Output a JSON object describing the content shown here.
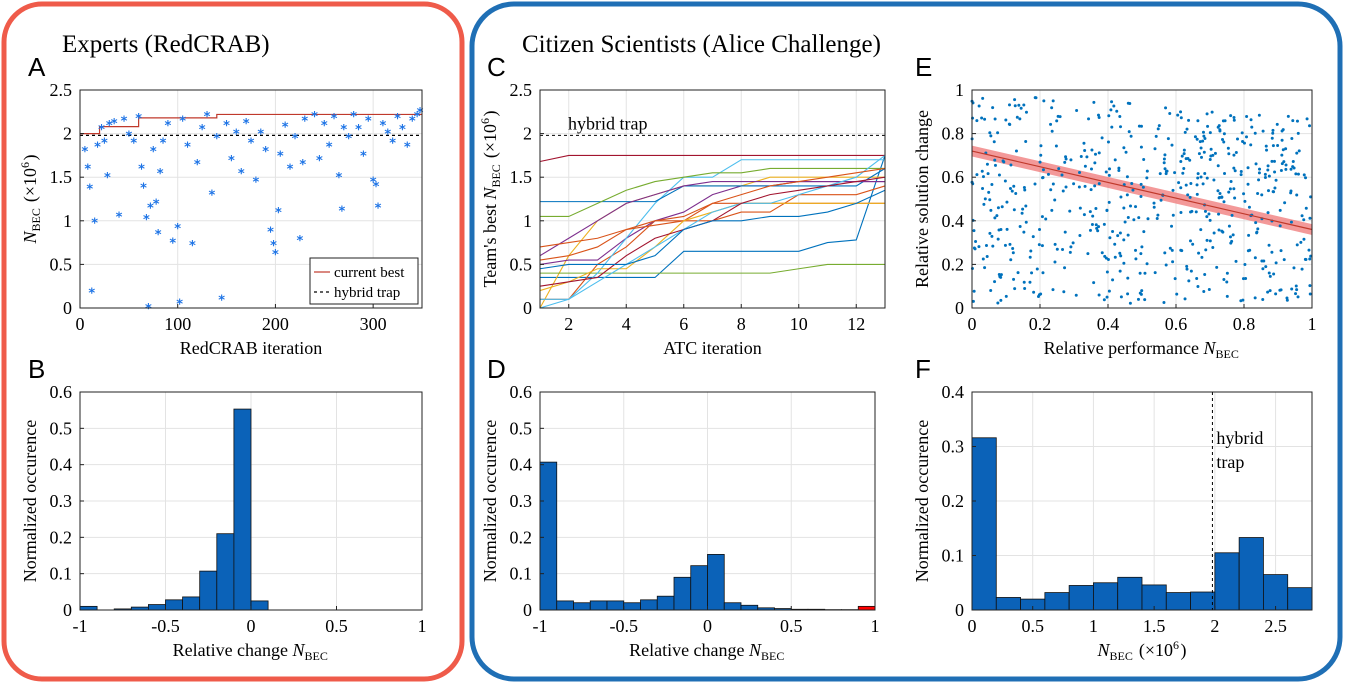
{
  "groups": {
    "experts": {
      "title": "Experts (RedCRAB)",
      "color": "#EF5B4A"
    },
    "citizens": {
      "title": "Citizen Scientists (Alice Challenge)",
      "color": "#1F6FB5"
    }
  },
  "chart_data": [
    {
      "panel": "A",
      "type": "scatter",
      "xlabel": "RedCRAB iteration",
      "ylabel": "N_BEC (×10^6)",
      "xlim": [
        0,
        350
      ],
      "ylim": [
        0,
        2.5
      ],
      "xticks": [
        0,
        100,
        200,
        300
      ],
      "yticks": [
        0,
        0.5,
        1,
        1.5,
        2,
        2.5
      ],
      "grid": true,
      "legend_position": "bottom-right",
      "lines": [
        {
          "name": "current best",
          "style": "solid",
          "color": "#C0392B",
          "x": [
            0,
            20,
            20,
            60,
            60,
            140,
            140,
            350
          ],
          "y": [
            2.0,
            2.0,
            2.08,
            2.08,
            2.18,
            2.18,
            2.22,
            2.22
          ]
        },
        {
          "name": "hybrid trap",
          "style": "dashed",
          "color": "#000000",
          "x": [
            0,
            350
          ],
          "y": [
            1.98,
            1.98
          ]
        }
      ],
      "marker_color": "#1E74E6",
      "points_note": "approximately 350 evaluations clustered around 1.8–2.2 with sparse outliers down to 0",
      "points": [
        [
          5,
          1.8
        ],
        [
          8,
          1.6
        ],
        [
          10,
          1.37
        ],
        [
          12,
          0.18
        ],
        [
          15,
          0.98
        ],
        [
          18,
          1.85
        ],
        [
          22,
          2.05
        ],
        [
          25,
          1.9
        ],
        [
          28,
          1.5
        ],
        [
          30,
          2.1
        ],
        [
          35,
          2.12
        ],
        [
          40,
          1.05
        ],
        [
          45,
          2.15
        ],
        [
          50,
          1.98
        ],
        [
          55,
          1.9
        ],
        [
          60,
          2.18
        ],
        [
          63,
          1.6
        ],
        [
          65,
          1.38
        ],
        [
          68,
          1.02
        ],
        [
          70,
          0.0
        ],
        [
          72,
          1.15
        ],
        [
          75,
          1.8
        ],
        [
          78,
          1.2
        ],
        [
          80,
          0.85
        ],
        [
          82,
          1.55
        ],
        [
          85,
          1.9
        ],
        [
          90,
          2.1
        ],
        [
          95,
          0.75
        ],
        [
          100,
          0.92
        ],
        [
          102,
          0.05
        ],
        [
          105,
          2.15
        ],
        [
          110,
          1.85
        ],
        [
          115,
          0.72
        ],
        [
          120,
          1.65
        ],
        [
          125,
          2.05
        ],
        [
          130,
          2.2
        ],
        [
          135,
          1.3
        ],
        [
          140,
          1.95
        ],
        [
          145,
          0.1
        ],
        [
          150,
          2.1
        ],
        [
          155,
          1.7
        ],
        [
          160,
          2.0
        ],
        [
          165,
          1.55
        ],
        [
          170,
          2.12
        ],
        [
          175,
          1.9
        ],
        [
          180,
          1.45
        ],
        [
          185,
          2.0
        ],
        [
          190,
          1.8
        ],
        [
          195,
          0.88
        ],
        [
          198,
          0.72
        ],
        [
          200,
          0.62
        ],
        [
          203,
          1.1
        ],
        [
          205,
          1.75
        ],
        [
          210,
          2.08
        ],
        [
          215,
          1.6
        ],
        [
          220,
          1.95
        ],
        [
          225,
          0.78
        ],
        [
          228,
          1.65
        ],
        [
          230,
          2.15
        ],
        [
          240,
          2.2
        ],
        [
          245,
          1.7
        ],
        [
          250,
          2.1
        ],
        [
          255,
          1.85
        ],
        [
          260,
          2.18
        ],
        [
          265,
          1.5
        ],
        [
          268,
          1.12
        ],
        [
          270,
          2.05
        ],
        [
          275,
          1.95
        ],
        [
          280,
          2.2
        ],
        [
          285,
          2.05
        ],
        [
          290,
          1.75
        ],
        [
          295,
          2.15
        ],
        [
          300,
          1.45
        ],
        [
          303,
          1.4
        ],
        [
          305,
          1.15
        ],
        [
          310,
          2.1
        ],
        [
          315,
          2.0
        ],
        [
          320,
          1.9
        ],
        [
          325,
          2.18
        ],
        [
          330,
          2.05
        ],
        [
          335,
          1.85
        ],
        [
          340,
          2.15
        ],
        [
          345,
          2.2
        ],
        [
          348,
          2.25
        ]
      ]
    },
    {
      "panel": "B",
      "type": "bar",
      "xlabel": "Relative change N_BEC",
      "ylabel": "Normalized occurence",
      "xlim": [
        -1,
        1
      ],
      "ylim": [
        0,
        0.6
      ],
      "xticks": [
        -1,
        -0.5,
        0,
        0.5,
        1
      ],
      "yticks": [
        0,
        0.1,
        0.2,
        0.3,
        0.4,
        0.5,
        0.6
      ],
      "grid": true,
      "bin_width": 0.1,
      "bar_color": "#0B62B8",
      "bins": [
        [
          -1.0,
          0.01
        ],
        [
          -0.8,
          0.003
        ],
        [
          -0.7,
          0.008
        ],
        [
          -0.6,
          0.015
        ],
        [
          -0.5,
          0.028
        ],
        [
          -0.4,
          0.036
        ],
        [
          -0.3,
          0.107
        ],
        [
          -0.2,
          0.21
        ],
        [
          -0.1,
          0.553
        ],
        [
          0.0,
          0.025
        ]
      ]
    },
    {
      "panel": "C",
      "type": "line",
      "xlabel": "ATC iteration",
      "ylabel": "Team's best N_BEC (×10^6)",
      "xlim": [
        1,
        13
      ],
      "ylim": [
        0,
        2.5
      ],
      "xticks": [
        2,
        4,
        6,
        8,
        10,
        12
      ],
      "yticks": [
        0,
        0.5,
        1,
        1.5,
        2,
        2.5
      ],
      "grid": true,
      "reference": {
        "label": "hybrid trap",
        "y": 1.98
      },
      "series": [
        {
          "color": "#0072BD",
          "y": [
            0.35,
            0.35,
            0.35,
            0.35,
            0.35,
            0.65,
            0.65,
            0.65,
            0.65,
            0.65,
            0.75,
            0.78,
            1.75
          ]
        },
        {
          "color": "#D95319",
          "y": [
            0.1,
            0.1,
            0.5,
            0.7,
            1.0,
            1.0,
            1.2,
            1.2,
            1.2,
            1.2,
            1.2,
            1.2,
            1.2
          ]
        },
        {
          "color": "#EDB120",
          "y": [
            0.0,
            0.6,
            1.0,
            1.2,
            1.3,
            1.4,
            1.4,
            1.4,
            1.5,
            1.5,
            1.5,
            1.5,
            1.5
          ]
        },
        {
          "color": "#7E2F8E",
          "y": [
            0.5,
            0.55,
            0.55,
            0.8,
            1.0,
            1.1,
            1.3,
            1.4,
            1.4,
            1.45,
            1.45,
            1.45,
            1.45
          ]
        },
        {
          "color": "#77AC30",
          "y": [
            0.4,
            0.4,
            0.4,
            0.4,
            0.4,
            0.4,
            0.4,
            0.4,
            0.4,
            0.45,
            0.5,
            0.5,
            0.5
          ]
        },
        {
          "color": "#4DBEEE",
          "y": [
            0.1,
            0.1,
            0.4,
            0.8,
            1.2,
            1.5,
            1.5,
            1.7,
            1.7,
            1.7,
            1.7,
            1.7,
            1.7
          ]
        },
        {
          "color": "#A2142F",
          "y": [
            1.68,
            1.75,
            1.75,
            1.75,
            1.75,
            1.75,
            1.75,
            1.75,
            1.75,
            1.75,
            1.75,
            1.75,
            1.75
          ]
        },
        {
          "color": "#0072BD",
          "y": [
            1.22,
            1.22,
            1.22,
            1.22,
            1.22,
            1.4,
            1.4,
            1.4,
            1.4,
            1.4,
            1.4,
            1.4,
            1.6
          ]
        },
        {
          "color": "#D95319",
          "y": [
            0.55,
            0.6,
            0.7,
            0.9,
            0.95,
            1.0,
            1.0,
            1.1,
            1.1,
            1.3,
            1.3,
            1.3,
            1.4
          ]
        },
        {
          "color": "#EDB120",
          "y": [
            0.2,
            0.3,
            0.45,
            0.45,
            0.7,
            1.0,
            1.1,
            1.2,
            1.2,
            1.2,
            1.2,
            1.2,
            1.2
          ]
        },
        {
          "color": "#7E2F8E",
          "y": [
            0.6,
            0.8,
            1.0,
            1.2,
            1.3,
            1.4,
            1.45,
            1.45,
            1.45,
            1.45,
            1.45,
            1.45,
            1.45
          ]
        },
        {
          "color": "#77AC30",
          "y": [
            1.05,
            1.05,
            1.2,
            1.35,
            1.45,
            1.5,
            1.55,
            1.55,
            1.6,
            1.6,
            1.6,
            1.6,
            1.6
          ]
        },
        {
          "color": "#4DBEEE",
          "y": [
            0.0,
            0.1,
            0.3,
            0.5,
            0.7,
            0.9,
            1.1,
            1.2,
            1.2,
            1.3,
            1.4,
            1.5,
            1.75
          ]
        },
        {
          "color": "#A2142F",
          "y": [
            0.25,
            0.3,
            0.35,
            0.6,
            0.8,
            0.9,
            1.0,
            1.2,
            1.3,
            1.35,
            1.4,
            1.45,
            1.5
          ]
        },
        {
          "color": "#0072BD",
          "y": [
            0.45,
            0.5,
            0.5,
            0.5,
            0.6,
            0.9,
            1.0,
            1.0,
            1.05,
            1.05,
            1.1,
            1.2,
            1.35
          ]
        },
        {
          "color": "#D95319",
          "y": [
            0.7,
            0.75,
            0.8,
            0.9,
            1.0,
            1.05,
            1.2,
            1.3,
            1.4,
            1.45,
            1.5,
            1.55,
            1.6
          ]
        }
      ]
    },
    {
      "panel": "D",
      "type": "bar",
      "xlabel": "Relative change N_BEC",
      "ylabel": "Normalized occurence",
      "xlim": [
        -1,
        1
      ],
      "ylim": [
        0,
        0.6
      ],
      "xticks": [
        -1,
        -0.5,
        0,
        0.5,
        1
      ],
      "yticks": [
        0,
        0.1,
        0.2,
        0.3,
        0.4,
        0.5,
        0.6
      ],
      "grid": true,
      "bin_width": 0.1,
      "bar_color": "#0B62B8",
      "highlight_color": "#FF0000",
      "bins": [
        [
          -1.0,
          0.407
        ],
        [
          -0.9,
          0.025
        ],
        [
          -0.8,
          0.02
        ],
        [
          -0.7,
          0.025
        ],
        [
          -0.6,
          0.025
        ],
        [
          -0.5,
          0.02
        ],
        [
          -0.4,
          0.028
        ],
        [
          -0.3,
          0.038
        ],
        [
          -0.2,
          0.09
        ],
        [
          -0.1,
          0.122
        ],
        [
          0.0,
          0.153
        ],
        [
          0.1,
          0.02
        ],
        [
          0.2,
          0.013
        ],
        [
          0.3,
          0.006
        ],
        [
          0.4,
          0.004
        ],
        [
          0.5,
          0.002
        ],
        [
          0.6,
          0.002
        ],
        [
          0.7,
          0.001
        ],
        [
          0.8,
          0.001
        ]
      ],
      "highlight_bins": [
        [
          0.9,
          0.01
        ]
      ]
    },
    {
      "panel": "E",
      "type": "scatter",
      "xlabel": "Relative performance N_BEC",
      "ylabel": "Relative solution change",
      "xlim": [
        0,
        1
      ],
      "ylim": [
        0,
        1
      ],
      "xticks": [
        0,
        0.2,
        0.4,
        0.6,
        0.8,
        1
      ],
      "yticks": [
        0,
        0.2,
        0.4,
        0.6,
        0.8,
        1
      ],
      "grid": true,
      "marker_color": "#0072BD",
      "fit": {
        "x": [
          0,
          1
        ],
        "y": [
          0.72,
          0.36
        ],
        "band": 0.025,
        "line_color": "#C0392B",
        "band_color": "#F08080"
      },
      "points_note": "approximately 600 dots spread over the full unit square, denser at low values"
    },
    {
      "panel": "F",
      "type": "bar",
      "xlabel": "N_BEC (×10^6)",
      "ylabel": "Normalized occurence",
      "xlim": [
        0,
        2.8
      ],
      "ylim": [
        0,
        0.4
      ],
      "xticks": [
        0,
        0.5,
        1,
        1.5,
        2,
        2.5
      ],
      "yticks": [
        0,
        0.1,
        0.2,
        0.3,
        0.4
      ],
      "grid": true,
      "bin_width": 0.2,
      "bar_color": "#0B62B8",
      "reference": {
        "label_line1": "hybrid",
        "label_line2": "trap",
        "x": 1.98
      },
      "bins": [
        [
          0.0,
          0.316
        ],
        [
          0.2,
          0.023
        ],
        [
          0.4,
          0.02
        ],
        [
          0.6,
          0.032
        ],
        [
          0.8,
          0.045
        ],
        [
          1.0,
          0.05
        ],
        [
          1.2,
          0.06
        ],
        [
          1.4,
          0.046
        ],
        [
          1.6,
          0.032
        ],
        [
          1.8,
          0.033
        ],
        [
          2.0,
          0.105
        ],
        [
          2.2,
          0.133
        ],
        [
          2.4,
          0.065
        ],
        [
          2.6,
          0.041
        ]
      ]
    }
  ]
}
